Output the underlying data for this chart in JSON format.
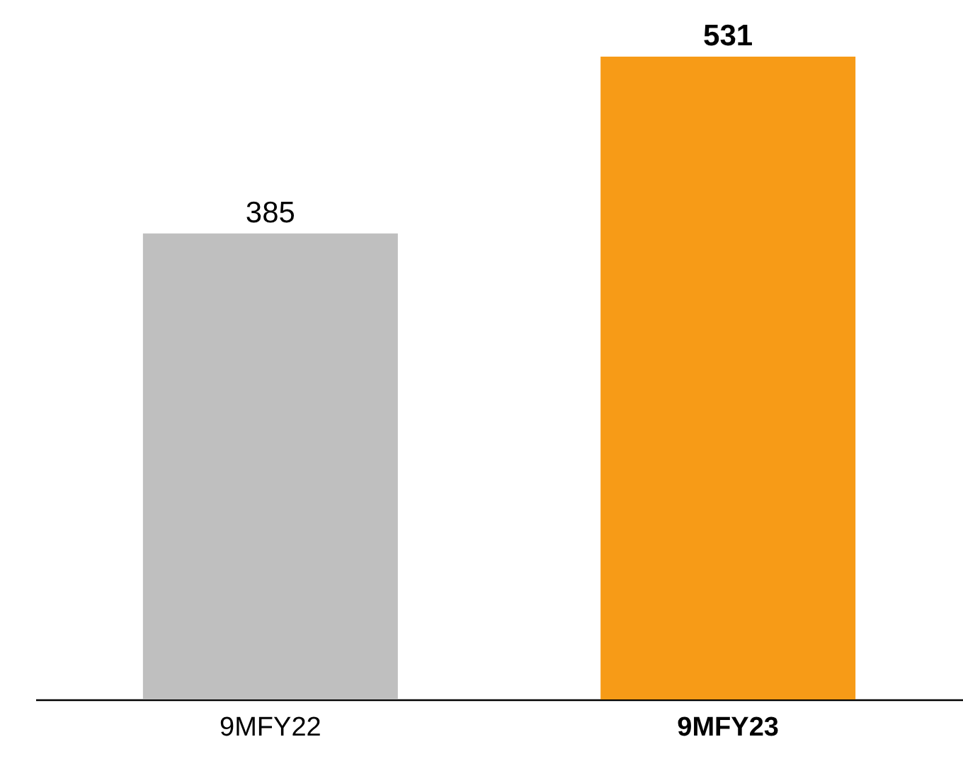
{
  "chart_data": {
    "type": "bar",
    "categories": [
      "9MFY22",
      "9MFY23"
    ],
    "values": [
      385,
      531
    ],
    "colors": [
      "#bfbfbf",
      "#f79b17"
    ],
    "data_labels": true
  }
}
